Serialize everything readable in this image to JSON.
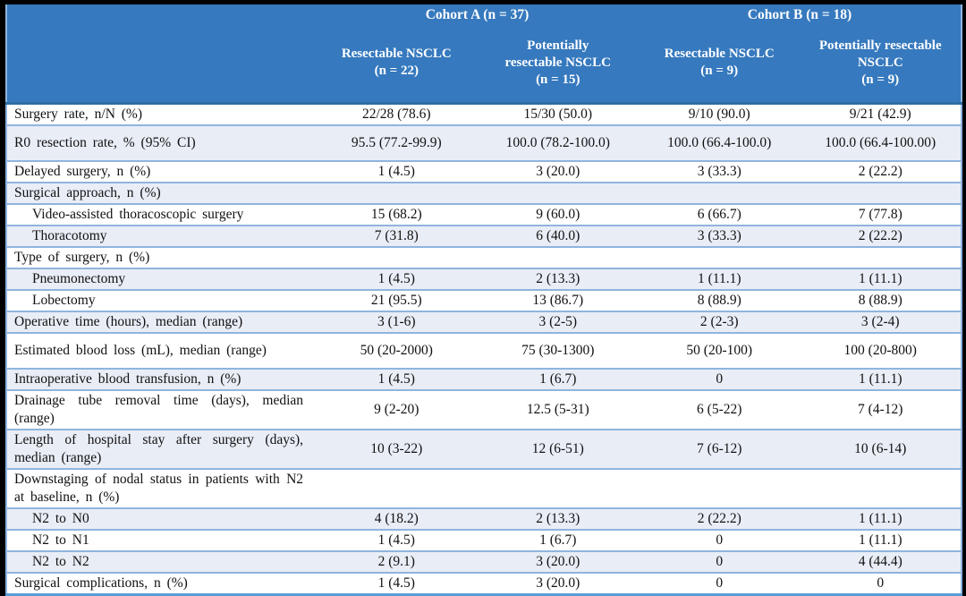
{
  "colors": {
    "header_bg": "#3679BE",
    "header_text": "#FFFFFF",
    "row_stripe": "#E9EDF6",
    "rule_blue": "#8FB4DE",
    "header_rule": "#2E6DA4",
    "frame": "#000000",
    "body_text": "#111111"
  },
  "table": {
    "cohort_a_label": "Cohort A (n = 37)",
    "cohort_b_label": "Cohort B (n = 18)",
    "columns": [
      "Resectable NSCLC\n(n = 22)",
      "Potentially\nresectable NSCLC\n(n = 15)",
      "Resectable NSCLC\n(n = 9)",
      "Potentially resectable\nNSCLC\n(n = 9)"
    ],
    "rows": [
      {
        "label": "Surgery rate, n/N (%)",
        "indent": false,
        "tall": false,
        "values": [
          "22/28 (78.6)",
          "15/30 (50.0)",
          "9/10 (90.0)",
          "9/21 (42.9)"
        ]
      },
      {
        "label": "R0 resection rate, % (95% CI)",
        "indent": false,
        "tall": true,
        "values": [
          "95.5 (77.2-99.9)",
          "100.0 (78.2-100.0)",
          "100.0 (66.4-100.0)",
          "100.0 (66.4-100.00)"
        ]
      },
      {
        "label": "Delayed surgery, n (%)",
        "indent": false,
        "tall": false,
        "values": [
          "1 (4.5)",
          "3 (20.0)",
          "3 (33.3)",
          "2 (22.2)"
        ]
      },
      {
        "label": "Surgical approach, n (%)",
        "indent": false,
        "tall": false,
        "values": [
          "",
          "",
          "",
          ""
        ]
      },
      {
        "label": "Video-assisted thoracoscopic surgery",
        "indent": true,
        "tall": false,
        "values": [
          "15 (68.2)",
          "9 (60.0)",
          "6 (66.7)",
          "7 (77.8)"
        ]
      },
      {
        "label": "Thoracotomy",
        "indent": true,
        "tall": false,
        "values": [
          "7 (31.8)",
          "6 (40.0)",
          "3 (33.3)",
          "2 (22.2)"
        ]
      },
      {
        "label": "Type of surgery, n (%)",
        "indent": false,
        "tall": false,
        "values": [
          "",
          "",
          "",
          ""
        ]
      },
      {
        "label": "Pneumonectomy",
        "indent": true,
        "tall": false,
        "values": [
          "1 (4.5)",
          "2 (13.3)",
          "1 (11.1)",
          "1 (11.1)"
        ]
      },
      {
        "label": "Lobectomy",
        "indent": true,
        "tall": false,
        "values": [
          "21 (95.5)",
          "13 (86.7)",
          "8 (88.9)",
          "8 (88.9)"
        ]
      },
      {
        "label": "Operative time (hours), median (range)",
        "indent": false,
        "tall": false,
        "values": [
          "3 (1-6)",
          "3 (2-5)",
          "2 (2-3)",
          "3 (2-4)"
        ]
      },
      {
        "label": "Estimated blood loss (mL), median (range)",
        "indent": false,
        "tall": true,
        "values": [
          "50 (20-2000)",
          "75 (30-1300)",
          "50 (20-100)",
          "100 (20-800)"
        ]
      },
      {
        "label": "Intraoperative blood transfusion, n (%)",
        "indent": false,
        "tall": false,
        "values": [
          "1 (4.5)",
          "1 (6.7)",
          "0",
          "1 (11.1)"
        ]
      },
      {
        "label": "Drainage tube removal time (days), median (range)",
        "indent": false,
        "tall": false,
        "values": [
          "9 (2-20)",
          "12.5 (5-31)",
          "6 (5-22)",
          "7 (4-12)"
        ]
      },
      {
        "label": "Length of hospital stay after surgery (days), median (range)",
        "indent": false,
        "tall": false,
        "values": [
          "10 (3-22)",
          "12 (6-51)",
          "7 (6-12)",
          "10 (6-14)"
        ]
      },
      {
        "label": "Downstaging of nodal status in patients with N2 at baseline, n (%)",
        "indent": false,
        "tall": false,
        "values": [
          "",
          "",
          "",
          ""
        ]
      },
      {
        "label": "N2 to N0",
        "indent": true,
        "tall": false,
        "values": [
          "4 (18.2)",
          "2 (13.3)",
          "2 (22.2)",
          "1 (11.1)"
        ]
      },
      {
        "label": "N2 to N1",
        "indent": true,
        "tall": false,
        "values": [
          "1 (4.5)",
          "1 (6.7)",
          "0",
          "1 (11.1)"
        ]
      },
      {
        "label": "N2 to N2",
        "indent": true,
        "tall": false,
        "values": [
          "2 (9.1)",
          "3 (20.0)",
          "0",
          "4 (44.4)"
        ]
      },
      {
        "label": "Surgical complications, n (%)",
        "indent": false,
        "tall": false,
        "values": [
          "1 (4.5)",
          "3 (20.0)",
          "0",
          "0"
        ]
      }
    ]
  }
}
